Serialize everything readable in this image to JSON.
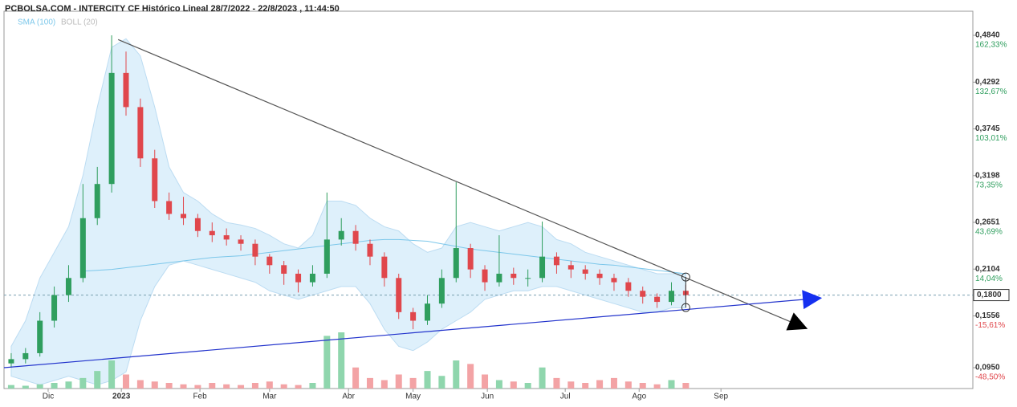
{
  "chart_data": {
    "type": "candlestick",
    "title": "PCBOLSA.COM - INTERCITY CF Histórico Lineal 28/7/2022 - 22/8/2023 , 11:44:50",
    "indicators": [
      {
        "name": "SMA (100)",
        "color": "#7cc7ea"
      },
      {
        "name": "BOLL (20)",
        "color": "#bbbbbb"
      }
    ],
    "up_color": "#2f9e5e",
    "down_color": "#e0474c",
    "band_color": "#d6ecfa",
    "x": [
      2,
      6,
      10,
      14,
      18,
      22,
      26,
      30,
      34,
      38,
      42,
      46,
      50,
      54,
      58,
      62,
      66,
      70,
      74,
      78,
      82,
      86,
      90,
      94,
      98,
      102,
      106,
      110,
      114,
      118,
      122,
      126,
      130,
      134,
      138,
      142,
      146,
      150,
      154,
      158,
      162,
      166,
      170,
      174,
      178,
      182,
      186,
      190
    ],
    "open": [
      0.1,
      0.105,
      0.112,
      0.15,
      0.18,
      0.2,
      0.27,
      0.31,
      0.44,
      0.4,
      0.34,
      0.29,
      0.275,
      0.27,
      0.255,
      0.25,
      0.245,
      0.24,
      0.225,
      0.215,
      0.205,
      0.195,
      0.205,
      0.245,
      0.255,
      0.24,
      0.225,
      0.2,
      0.16,
      0.15,
      0.17,
      0.2,
      0.235,
      0.21,
      0.195,
      0.205,
      0.2,
      0.2,
      0.225,
      0.215,
      0.21,
      0.205,
      0.2,
      0.195,
      0.185,
      0.178,
      0.172,
      0.185
    ],
    "high": [
      0.112,
      0.118,
      0.16,
      0.19,
      0.215,
      0.31,
      0.33,
      0.484,
      0.465,
      0.41,
      0.35,
      0.3,
      0.295,
      0.275,
      0.265,
      0.258,
      0.25,
      0.245,
      0.228,
      0.22,
      0.21,
      0.215,
      0.3,
      0.27,
      0.262,
      0.245,
      0.23,
      0.205,
      0.165,
      0.18,
      0.21,
      0.312,
      0.24,
      0.215,
      0.25,
      0.212,
      0.21,
      0.266,
      0.23,
      0.22,
      0.215,
      0.21,
      0.205,
      0.2,
      0.19,
      0.182,
      0.195,
      0.192
    ],
    "low": [
      0.095,
      0.1,
      0.108,
      0.142,
      0.172,
      0.195,
      0.262,
      0.3,
      0.39,
      0.33,
      0.282,
      0.268,
      0.262,
      0.248,
      0.242,
      0.238,
      0.232,
      0.215,
      0.205,
      0.192,
      0.183,
      0.19,
      0.2,
      0.238,
      0.232,
      0.215,
      0.19,
      0.152,
      0.14,
      0.145,
      0.165,
      0.195,
      0.2,
      0.185,
      0.19,
      0.192,
      0.19,
      0.195,
      0.205,
      0.2,
      0.198,
      0.192,
      0.185,
      0.178,
      0.17,
      0.165,
      0.168,
      0.175
    ],
    "close": [
      0.105,
      0.112,
      0.15,
      0.18,
      0.2,
      0.27,
      0.31,
      0.44,
      0.4,
      0.34,
      0.29,
      0.275,
      0.27,
      0.255,
      0.25,
      0.245,
      0.24,
      0.225,
      0.215,
      0.205,
      0.195,
      0.205,
      0.245,
      0.255,
      0.24,
      0.225,
      0.2,
      0.16,
      0.15,
      0.17,
      0.2,
      0.235,
      0.21,
      0.195,
      0.205,
      0.2,
      0.2,
      0.225,
      0.215,
      0.21,
      0.205,
      0.2,
      0.195,
      0.185,
      0.178,
      0.172,
      0.185,
      0.18
    ],
    "volume": [
      5,
      4,
      6,
      8,
      10,
      15,
      25,
      40,
      20,
      12,
      10,
      8,
      6,
      5,
      8,
      6,
      5,
      8,
      10,
      6,
      5,
      8,
      75,
      80,
      30,
      15,
      12,
      20,
      15,
      25,
      18,
      40,
      35,
      20,
      12,
      10,
      8,
      30,
      15,
      10,
      8,
      12,
      15,
      10,
      8,
      6,
      12,
      8
    ],
    "sma": [
      null,
      null,
      null,
      null,
      null,
      0.208,
      0.209,
      0.21,
      0.212,
      0.214,
      0.216,
      0.218,
      0.22,
      0.222,
      0.224,
      0.225,
      0.226,
      0.228,
      0.23,
      0.232,
      0.234,
      0.236,
      0.238,
      0.24,
      0.242,
      0.244,
      0.245,
      0.245,
      0.244,
      0.243,
      0.24,
      0.237,
      0.234,
      0.232,
      0.23,
      0.228,
      0.226,
      0.224,
      0.222,
      0.22,
      0.218,
      0.216,
      0.215,
      0.213,
      0.211,
      0.209,
      0.207,
      0.205
    ],
    "boll_upper": [
      0.12,
      0.15,
      0.2,
      0.23,
      0.26,
      0.32,
      0.4,
      0.47,
      0.48,
      0.46,
      0.4,
      0.33,
      0.3,
      0.29,
      0.275,
      0.265,
      0.262,
      0.258,
      0.25,
      0.24,
      0.235,
      0.25,
      0.29,
      0.29,
      0.285,
      0.27,
      0.26,
      0.255,
      0.24,
      0.23,
      0.235,
      0.26,
      0.265,
      0.26,
      0.255,
      0.26,
      0.265,
      0.26,
      0.245,
      0.24,
      0.23,
      0.225,
      0.22,
      0.215,
      0.21,
      0.205,
      0.205,
      0.205
    ],
    "boll_lower": [
      0.085,
      0.08,
      0.075,
      0.08,
      0.085,
      0.08,
      0.075,
      0.08,
      0.09,
      0.15,
      0.19,
      0.215,
      0.22,
      0.215,
      0.21,
      0.205,
      0.2,
      0.195,
      0.185,
      0.18,
      0.175,
      0.18,
      0.185,
      0.19,
      0.19,
      0.17,
      0.14,
      0.12,
      0.115,
      0.125,
      0.14,
      0.15,
      0.16,
      0.175,
      0.18,
      0.185,
      0.185,
      0.19,
      0.19,
      0.185,
      0.18,
      0.175,
      0.17,
      0.165,
      0.16,
      0.16,
      0.165,
      0.165
    ],
    "xlim": [
      0,
      270
    ],
    "xticks": [
      {
        "value": 12.3,
        "label": "Dic"
      },
      {
        "value": 32.7,
        "label": "2023"
      },
      {
        "value": 54.6,
        "label": "Feb"
      },
      {
        "value": 74,
        "label": "Mar"
      },
      {
        "value": 96,
        "label": "Abr"
      },
      {
        "value": 114,
        "label": "May"
      },
      {
        "value": 134.7,
        "label": "Jun"
      },
      {
        "value": 156.4,
        "label": "Jul"
      },
      {
        "value": 177,
        "label": "Ago"
      },
      {
        "value": 199.8,
        "label": "Sep"
      }
    ],
    "ylim": [
      0.0706,
      0.5122
    ],
    "yticks": [
      {
        "value": 0.484,
        "label": "0,4840"
      },
      {
        "value": 0.4292,
        "label": "0,4292"
      },
      {
        "value": 0.3745,
        "label": "0,3745"
      },
      {
        "value": 0.3198,
        "label": "0,3198"
      },
      {
        "value": 0.2651,
        "label": "0,2651"
      },
      {
        "value": 0.2104,
        "label": "0,2104"
      },
      {
        "value": 0.1556,
        "label": "0,1556"
      },
      {
        "value": 0.095,
        "label": "0,0950"
      }
    ],
    "y2lim": [
      -61.73,
      177.63
    ],
    "y2ticks": [
      {
        "value": 162.33,
        "label": "162,33%"
      },
      {
        "value": 132.67,
        "label": "132,67%"
      },
      {
        "value": 103.01,
        "label": "103,01%"
      },
      {
        "value": 73.35,
        "label": "73,35%"
      },
      {
        "value": 43.69,
        "label": "43,69%"
      },
      {
        "value": 14.04,
        "label": "14,04%"
      },
      {
        "value": -15.61,
        "label": "-15,61%"
      },
      {
        "value": -48.5,
        "label": "-48,50%"
      }
    ],
    "last_price": {
      "value": 0.18,
      "label": "0,1800"
    },
    "trendlines": [
      {
        "color": "#555555",
        "x": [
          31.8,
          221.5
        ],
        "y": [
          0.479,
          0.1447
        ]
      },
      {
        "color": "#2233cc",
        "x": [
          0,
          225.3
        ],
        "y": [
          0.095,
          0.1757
        ]
      }
    ],
    "markers": {
      "x": [
        190,
        190
      ],
      "y": [
        0.2011,
        0.1654
      ]
    }
  }
}
